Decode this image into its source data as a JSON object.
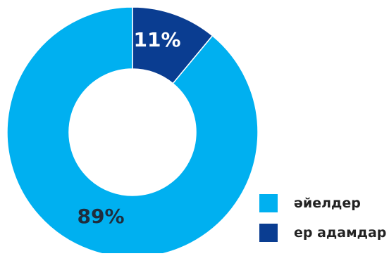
{
  "chart_data": {
    "type": "pie",
    "donut": true,
    "slices": [
      {
        "label": "ер адамдар",
        "value": 11,
        "display": "11%",
        "color": "#0A3D91",
        "label_color": "#ffffff"
      },
      {
        "label": "әйелдер",
        "value": 89,
        "display": "89%",
        "color": "#00B0F0",
        "label_color": "#1F2D3D"
      }
    ],
    "legend": {
      "position": "bottom-right",
      "entries": [
        {
          "label": "әйелдер",
          "color": "#00B0F0"
        },
        {
          "label": "ер адамдар",
          "color": "#0A3D91"
        }
      ]
    }
  }
}
